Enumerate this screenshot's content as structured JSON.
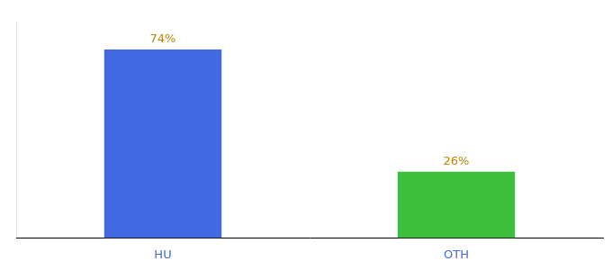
{
  "chart_data": {
    "type": "bar",
    "categories": [
      "HU",
      "OTH"
    ],
    "values": [
      74,
      26
    ],
    "value_labels": [
      "74%",
      "26%"
    ],
    "colors": [
      "#4169e1",
      "#3dbf3d"
    ],
    "ylim": [
      0,
      85
    ],
    "grid": false,
    "data_labels": true,
    "tick_labels": "x"
  }
}
